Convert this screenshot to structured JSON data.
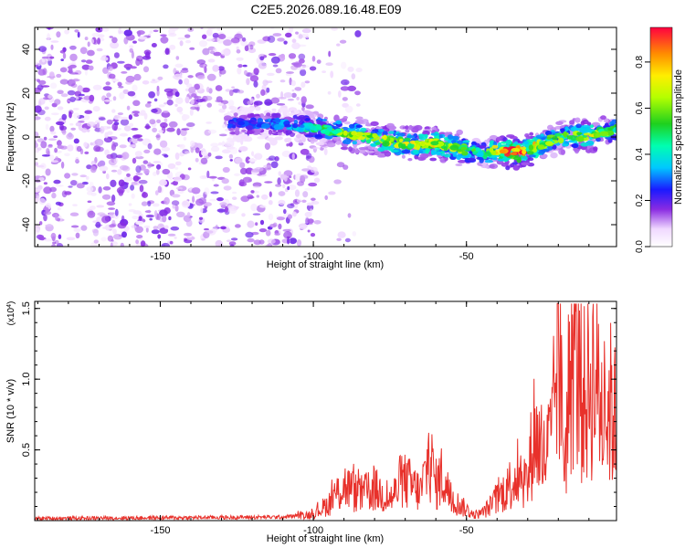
{
  "title": "C2E5.2026.089.16.48.E09",
  "chart_data": [
    {
      "type": "heatmap",
      "xlabel": "Height of straight line (km)",
      "ylabel": "Frequency (Hz)",
      "xlim": [
        -191,
        -1
      ],
      "ylim": [
        -50,
        50
      ],
      "xticks": [
        -150,
        -100,
        -50
      ],
      "yticks": [
        -40,
        -20,
        0,
        20,
        40
      ],
      "colorbar": {
        "label": "Normalized spectral amplitude",
        "range": [
          0.0,
          0.95
        ],
        "ticks": [
          "0.0",
          "0.2",
          "0.4",
          "0.6",
          "0.8"
        ],
        "tick_values": [
          0.0,
          0.2,
          0.4,
          0.6,
          0.8
        ]
      },
      "ridge": {
        "height_km": [
          -128,
          -110,
          -100,
          -90,
          -80,
          -70,
          -60,
          -50,
          -45,
          -40,
          -35,
          -30,
          -25,
          -20,
          -10,
          -1
        ],
        "freq_hz": [
          6,
          6,
          4,
          2,
          -1,
          -3,
          -3,
          -6,
          -8,
          -6,
          -7,
          -6,
          -3,
          0,
          1,
          3
        ],
        "peak_amplitude": [
          0.25,
          0.3,
          0.45,
          0.6,
          0.65,
          0.65,
          0.7,
          0.6,
          0.45,
          0.75,
          0.95,
          0.8,
          0.6,
          0.55,
          0.7,
          0.5
        ]
      },
      "noise_region_km": [
        -191,
        -100
      ],
      "noise_amplitude": 0.1
    },
    {
      "type": "line",
      "xlabel": "Height of straight line (km)",
      "ylabel": "SNR (10 * v/v)",
      "exponent_label": "(x10",
      "exponent_value": "4",
      "exponent_close": ")",
      "xlim": [
        -191,
        -1
      ],
      "ylim": [
        0,
        15500
      ],
      "xticks": [
        -150,
        -100,
        -50
      ],
      "yticks": [
        "0.5",
        "1.0",
        "1.5"
      ],
      "ytick_values": [
        5000,
        10000,
        15000
      ],
      "color": "#e8312b",
      "series": [
        {
          "name": "SNR",
          "x": [
            -191,
            -150,
            -110,
            -100,
            -95,
            -90,
            -85,
            -80,
            -75,
            -70,
            -65,
            -62,
            -60,
            -58,
            -55,
            -50,
            -48,
            -45,
            -40,
            -35,
            -32,
            -30,
            -28,
            -25,
            -22,
            -20,
            -18,
            -15,
            -12,
            -8,
            -5,
            -3,
            -1
          ],
          "y": [
            150,
            200,
            250,
            450,
            1200,
            2500,
            1800,
            2200,
            1500,
            2800,
            2000,
            4500,
            2500,
            3200,
            1500,
            800,
            400,
            500,
            1500,
            2800,
            3500,
            2500,
            6500,
            4200,
            6000,
            13000,
            4200,
            12500,
            8500,
            10500,
            7000,
            8200,
            7000
          ]
        }
      ]
    }
  ]
}
